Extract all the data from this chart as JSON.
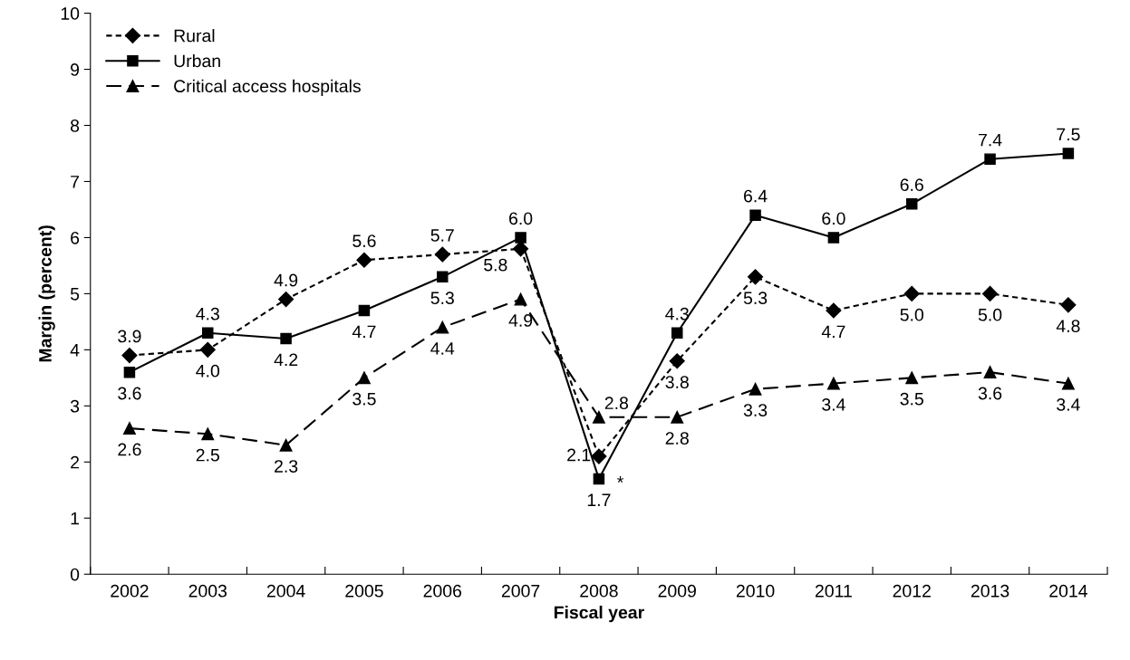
{
  "chart_data": {
    "type": "line",
    "xlabel": "Fiscal year",
    "ylabel": "Margin (percent)",
    "categories": [
      "2002",
      "2003",
      "2004",
      "2005",
      "2006",
      "2007",
      "2008",
      "2009",
      "2010",
      "2011",
      "2012",
      "2013",
      "2014"
    ],
    "series": [
      {
        "name": "Rural",
        "color": "#000000",
        "marker": "diamond",
        "line_style": "dotted",
        "values": [
          3.9,
          4.0,
          4.9,
          5.6,
          5.7,
          5.8,
          2.1,
          3.8,
          5.3,
          4.7,
          5.0,
          5.0,
          4.8
        ],
        "value_labels": [
          "3.9",
          "4.0",
          "4.9",
          "5.6",
          "5.7",
          "5.8",
          "2.1",
          "3.8",
          "5.3",
          "4.7",
          "5.0",
          "5.0",
          "4.8"
        ]
      },
      {
        "name": "Urban",
        "color": "#000000",
        "marker": "square",
        "line_style": "solid",
        "values": [
          3.6,
          4.3,
          4.2,
          4.7,
          5.3,
          6.0,
          1.7,
          4.3,
          6.4,
          6.0,
          6.6,
          7.4,
          7.5
        ],
        "value_labels": [
          "3.6",
          "4.3",
          "4.2",
          "4.7",
          "5.3",
          "6.0",
          "1.7",
          "4.3",
          "6.4",
          "6.0",
          "6.6",
          "7.4",
          "7.5"
        ]
      },
      {
        "name": "Critical access hospitals",
        "color": "#000000",
        "marker": "triangle",
        "line_style": "dashed",
        "values": [
          2.6,
          2.5,
          2.3,
          3.5,
          4.4,
          4.9,
          2.8,
          2.8,
          3.3,
          3.4,
          3.5,
          3.6,
          3.4
        ],
        "value_labels": [
          "2.6",
          "2.5",
          "2.3",
          "3.5",
          "4.4",
          "4.9",
          "2.8",
          "2.8",
          "3.3",
          "3.4",
          "3.5",
          "3.6",
          "3.4"
        ]
      }
    ],
    "annotations": [
      {
        "text": "*",
        "x": "2008",
        "y": 1.7
      }
    ],
    "ylim": [
      0,
      10
    ],
    "yticks": [
      0,
      1,
      2,
      3,
      4,
      5,
      6,
      7,
      8,
      9,
      10
    ],
    "grid": false,
    "legend": "top left"
  }
}
